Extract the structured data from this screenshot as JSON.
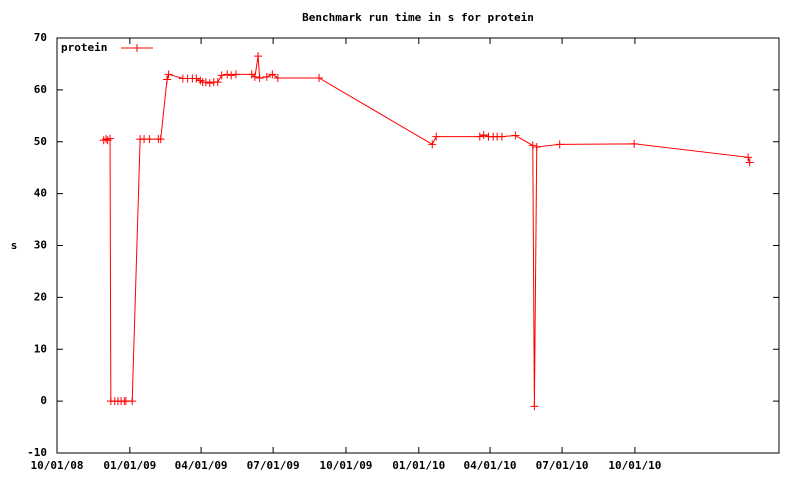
{
  "chart_data": {
    "type": "line",
    "title": "Benchmark run time in s for protein",
    "ylabel": "s",
    "legend": "top left",
    "x": [
      "2008-11-29",
      "2008-12-02",
      "2008-12-04",
      "2008-12-07",
      "2008-12-08",
      "2008-12-13",
      "2008-12-17",
      "2008-12-21",
      "2008-12-25",
      "2008-12-27",
      "2009-01-04",
      "2009-01-14",
      "2009-01-19",
      "2009-01-26",
      "2009-02-06",
      "2009-02-09",
      "2009-02-17",
      "2009-02-19",
      "2009-03-09",
      "2009-03-15",
      "2009-03-21",
      "2009-03-26",
      "2009-03-31",
      "2009-04-03",
      "2009-04-07",
      "2009-04-12",
      "2009-04-17",
      "2009-04-22",
      "2009-04-27",
      "2009-05-04",
      "2009-05-09",
      "2009-05-15",
      "2009-06-04",
      "2009-06-08",
      "2009-06-12",
      "2009-06-14",
      "2009-06-23",
      "2009-06-30",
      "2009-07-07",
      "2009-08-28",
      "2010-01-18",
      "2010-01-23",
      "2010-03-19",
      "2010-03-24",
      "2010-03-30",
      "2010-04-05",
      "2010-04-10",
      "2010-04-16",
      "2010-05-03",
      "2010-05-25",
      "2010-05-27",
      "2010-05-30",
      "2010-06-28",
      "2010-09-30",
      "2011-02-21",
      "2011-02-23"
    ],
    "series": [
      {
        "name": "protein",
        "color": "#ff0000",
        "values": [
          50.3,
          50.5,
          50.3,
          50.6,
          0,
          0,
          0,
          0,
          0,
          0,
          0,
          50.5,
          50.5,
          50.5,
          50.5,
          50.5,
          62,
          63,
          62.2,
          62.2,
          62.2,
          62.2,
          61.8,
          61.5,
          61.5,
          61.3,
          61.5,
          61.5,
          62.8,
          63,
          62.8,
          63,
          63,
          62.5,
          66.5,
          62.3,
          62.5,
          63,
          62.3,
          62.3,
          49.5,
          51,
          51,
          51.3,
          51,
          51,
          51,
          51,
          51.2,
          49.3,
          -1,
          49,
          49.5,
          49.6,
          47,
          46
        ]
      }
    ],
    "xlim": [
      "2008-10-01",
      "2011-04-01"
    ],
    "xticks": [
      {
        "value": "2008-10-01",
        "label": "10/01/08"
      },
      {
        "value": "2009-01-01",
        "label": "01/01/09"
      },
      {
        "value": "2009-04-01",
        "label": "04/01/09"
      },
      {
        "value": "2009-07-01",
        "label": "07/01/09"
      },
      {
        "value": "2009-10-01",
        "label": "10/01/09"
      },
      {
        "value": "2010-01-01",
        "label": "01/01/10"
      },
      {
        "value": "2010-04-01",
        "label": "04/01/10"
      },
      {
        "value": "2010-07-01",
        "label": "07/01/10"
      },
      {
        "value": "2010-10-01",
        "label": "10/01/10"
      }
    ],
    "ylim": [
      -10,
      70
    ],
    "yticks": [
      -10,
      0,
      10,
      20,
      30,
      40,
      50,
      60,
      70
    ]
  }
}
